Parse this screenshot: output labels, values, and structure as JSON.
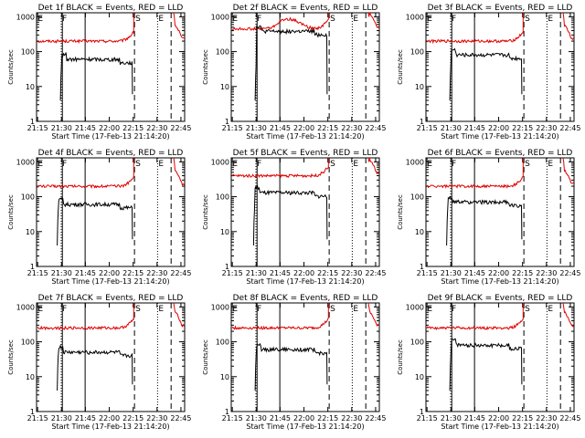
{
  "colors": {
    "events": "#000000",
    "lld": "#e00000",
    "axis": "#000000",
    "background": "#ffffff"
  },
  "common": {
    "xlabel": "Start Time (17-Feb-13 21:14:20)",
    "ylabel": "Counts/sec",
    "xticks": [
      "21:15",
      "21:30",
      "21:45",
      "22:00",
      "22:15",
      "22:30",
      "22:45"
    ],
    "yticks": [
      "1",
      "10",
      "100",
      "1000"
    ],
    "xlim_minutes": [
      0,
      93
    ],
    "ylim": [
      1,
      1300
    ],
    "yscale": "log",
    "markers": [
      {
        "label": "F",
        "t": 15.5,
        "style": "dotted"
      },
      {
        "label": "",
        "t": 16.2,
        "style": "solid"
      },
      {
        "label": "",
        "t": 30.5,
        "style": "solid"
      },
      {
        "label": "S",
        "t": 61.5,
        "style": "dashed"
      },
      {
        "label": "E",
        "t": 76,
        "style": "dotted"
      },
      {
        "label": "",
        "t": 84.5,
        "style": "dashed"
      }
    ],
    "corner_labels": [
      {
        "label": "E",
        "t": 0.8
      }
    ]
  },
  "chart_data": [
    {
      "type": "line",
      "title": "Det 1f BLACK = Events, RED = LLD",
      "lld_level": 200,
      "events_level": 60,
      "events_start": 15,
      "lld_shape": "flat"
    },
    {
      "type": "line",
      "title": "Det 2f BLACK = Events, RED = LLD",
      "lld_level": 450,
      "events_level": 380,
      "events_start": 15,
      "lld_shape": "bump"
    },
    {
      "type": "line",
      "title": "Det 3f BLACK = Events, RED = LLD",
      "lld_level": 200,
      "events_level": 80,
      "events_start": 15,
      "lld_shape": "flat"
    },
    {
      "type": "line",
      "title": "Det 4f BLACK = Events, RED = LLD",
      "lld_level": 200,
      "events_level": 60,
      "events_start": 13,
      "lld_shape": "flat"
    },
    {
      "type": "line",
      "title": "Det 5f BLACK = Events, RED = LLD",
      "lld_level": 400,
      "events_level": 130,
      "events_start": 14,
      "lld_shape": "flat"
    },
    {
      "type": "line",
      "title": "Det 6f BLACK = Events, RED = LLD",
      "lld_level": 200,
      "events_level": 70,
      "events_start": 13,
      "lld_shape": "flat"
    },
    {
      "type": "line",
      "title": "Det 7f BLACK = Events, RED = LLD",
      "lld_level": 250,
      "events_level": 50,
      "events_start": 13,
      "lld_shape": "flat"
    },
    {
      "type": "line",
      "title": "Det 8f BLACK = Events, RED = LLD",
      "lld_level": 250,
      "events_level": 60,
      "events_start": 15,
      "lld_shape": "flat"
    },
    {
      "type": "line",
      "title": "Det 9f BLACK = Events, RED = LLD",
      "lld_level": 250,
      "events_level": 80,
      "events_start": 15,
      "lld_shape": "flat"
    }
  ]
}
